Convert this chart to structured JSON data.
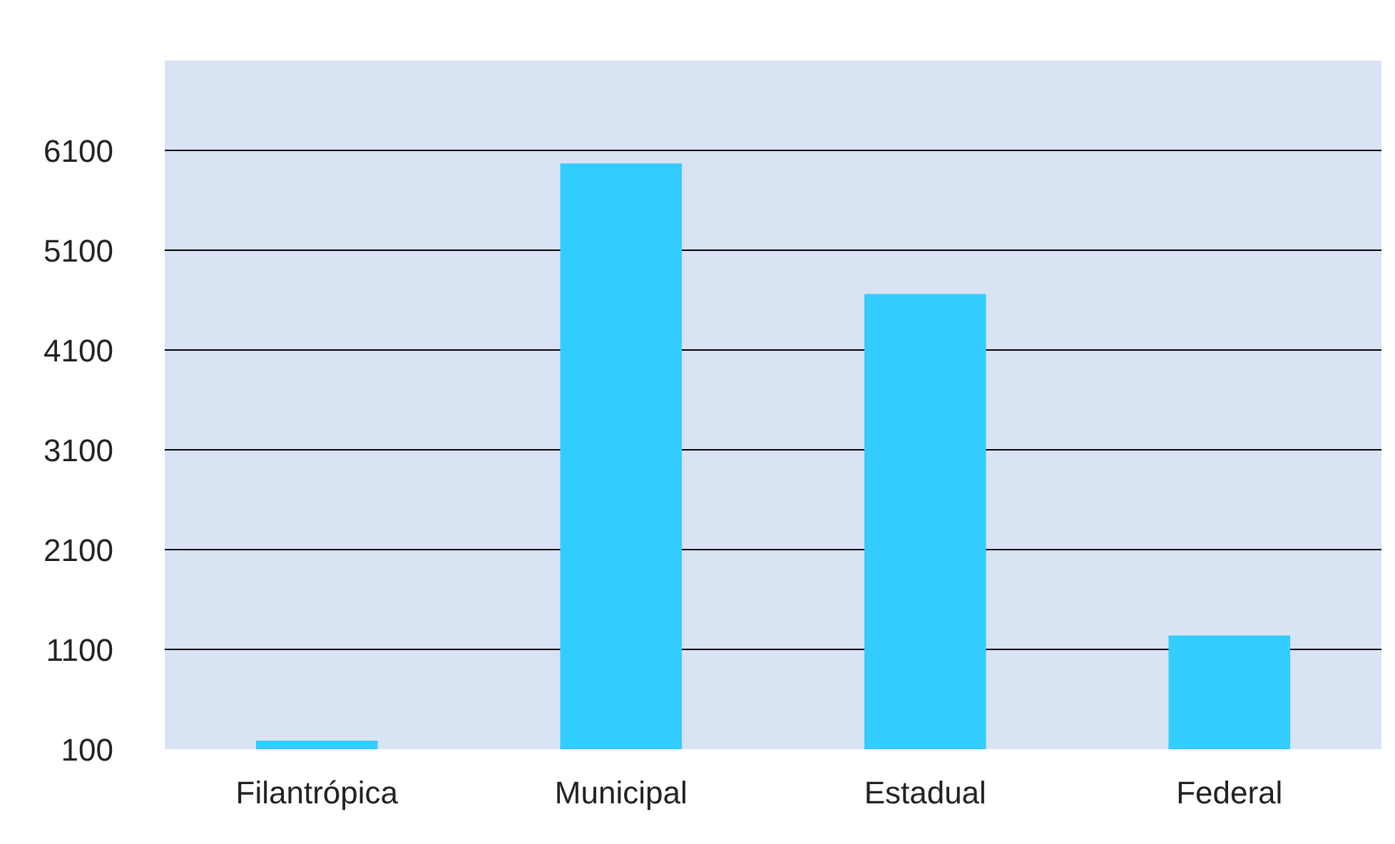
{
  "chart_data": {
    "type": "bar",
    "categories": [
      "Filantrópica",
      "Municipal",
      "Estadual",
      "Federal"
    ],
    "values": [
      185,
      5970,
      4660,
      1240
    ],
    "color": "#33ccff",
    "ylim": [
      100,
      7000
    ],
    "yticks": [
      100,
      1100,
      2100,
      3100,
      4100,
      5100,
      6100
    ],
    "grid": "y"
  }
}
